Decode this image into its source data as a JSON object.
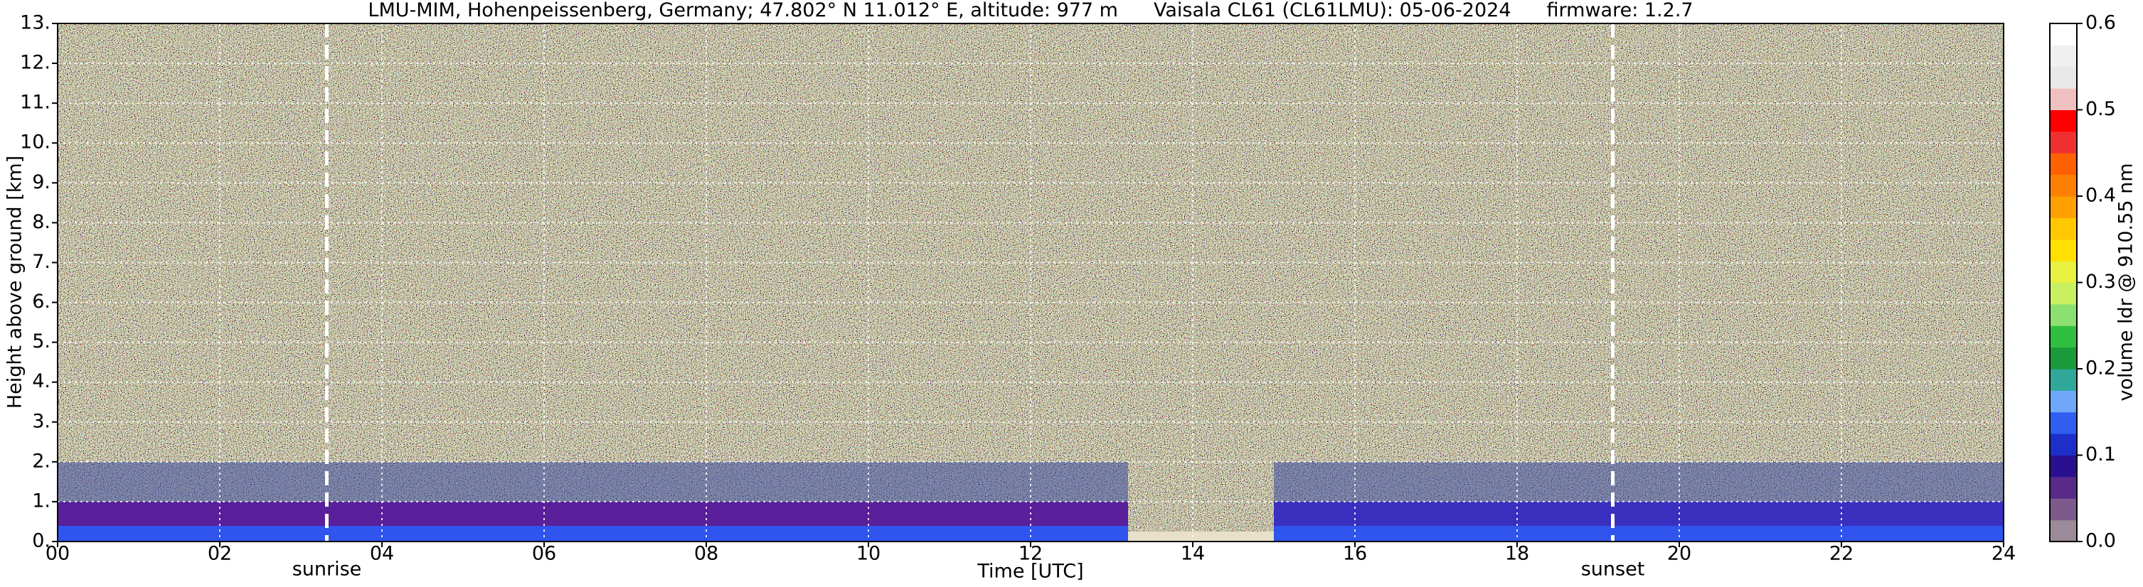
{
  "chart_data": {
    "type": "heatmap",
    "title": "LMU-MIM, Hohenpeissenberg, Germany; 47.802° N 11.012° E, altitude: 977 m",
    "instrument": "Vaisala CL61 (CL61LMU): 05-06-2024",
    "firmware": "firmware: 1.2.7",
    "xlabel": "Time [UTC]",
    "ylabel": "Height above ground [km]",
    "xlim": [
      0,
      24
    ],
    "xticks": [
      {
        "value": 0,
        "label": "00"
      },
      {
        "value": 2,
        "label": "02"
      },
      {
        "value": 4,
        "label": "04"
      },
      {
        "value": 6,
        "label": "06"
      },
      {
        "value": 8,
        "label": "08"
      },
      10,
      12,
      14,
      16,
      18,
      20,
      22,
      24
    ],
    "ylim": [
      0,
      13
    ],
    "yticks": [
      {
        "value": 0,
        "label": "0."
      },
      {
        "value": 1,
        "label": "1."
      },
      {
        "value": 2,
        "label": "2."
      },
      {
        "value": 3,
        "label": "3."
      },
      {
        "value": 4,
        "label": "4."
      },
      {
        "value": 5,
        "label": "5."
      },
      {
        "value": 6,
        "label": "6."
      },
      {
        "value": 7,
        "label": "7."
      },
      {
        "value": 8,
        "label": "8."
      },
      {
        "value": 9,
        "label": "9."
      },
      {
        "value": 10,
        "label": "10."
      },
      {
        "value": 11,
        "label": "11."
      },
      {
        "value": 12,
        "label": "12."
      },
      {
        "value": 13,
        "label": "13."
      }
    ],
    "grid": true,
    "events": [
      {
        "name": "sunrise",
        "x": 3.32
      },
      {
        "name": "sunset",
        "x": 19.18
      }
    ],
    "colorbar": {
      "label": "volume ldr @ 910.55 nm",
      "lim": [
        0,
        0.6
      ],
      "ticks": [
        {
          "value": 0,
          "label": "0.0"
        },
        0.1,
        0.2,
        0.3,
        0.4,
        0.5,
        0.6
      ],
      "colors": [
        "#9a8a9a",
        "#7c5a8c",
        "#5a2a88",
        "#2a1090",
        "#1e2ec8",
        "#2f5ef0",
        "#6fa8f8",
        "#2fa89a",
        "#1a9a3a",
        "#2fc040",
        "#8ce070",
        "#c8f060",
        "#e8f040",
        "#ffe000",
        "#ffc800",
        "#ffa000",
        "#ff8000",
        "#ff6000",
        "#f03030",
        "#ff0000",
        "#f0c0c0",
        "#e8e8e8",
        "#f0f0f0",
        "#ffffff"
      ]
    }
  }
}
